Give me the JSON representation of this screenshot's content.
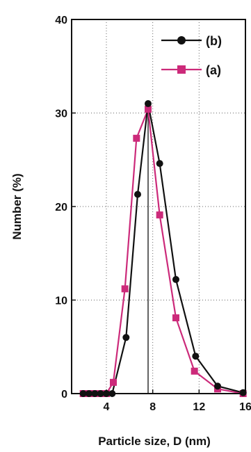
{
  "chart_data": {
    "type": "line",
    "xlabel": "Particle size, D (nm)",
    "ylabel": "Number (%)",
    "xlim": [
      1.0,
      16.0
    ],
    "ylim": [
      0,
      40
    ],
    "xticks": [
      4,
      8,
      12,
      16
    ],
    "yticks": [
      0,
      10,
      20,
      30,
      40
    ],
    "grid": "dotted",
    "legend_placement": "top-right",
    "reference_line_x": 7.6,
    "series": [
      {
        "name": "(b)",
        "color": "#111111",
        "marker": "circle",
        "x": [
          2.0,
          2.5,
          3.0,
          3.5,
          4.0,
          4.5,
          5.7,
          6.7,
          7.6,
          8.6,
          10.0,
          11.7,
          13.6,
          15.8
        ],
        "y": [
          0,
          0,
          0,
          0,
          0,
          0,
          6.0,
          21.3,
          31.0,
          24.6,
          12.2,
          4.0,
          0.8,
          0.1
        ]
      },
      {
        "name": "(a)",
        "color": "#cc2a7a",
        "marker": "square",
        "x": [
          2.0,
          2.5,
          3.0,
          3.5,
          4.0,
          4.6,
          5.6,
          6.6,
          7.6,
          8.6,
          10.0,
          11.6,
          13.6,
          15.8
        ],
        "y": [
          0,
          0,
          0,
          0,
          0,
          1.2,
          11.2,
          27.3,
          30.4,
          19.1,
          8.1,
          2.4,
          0.5,
          0.0
        ]
      }
    ]
  }
}
